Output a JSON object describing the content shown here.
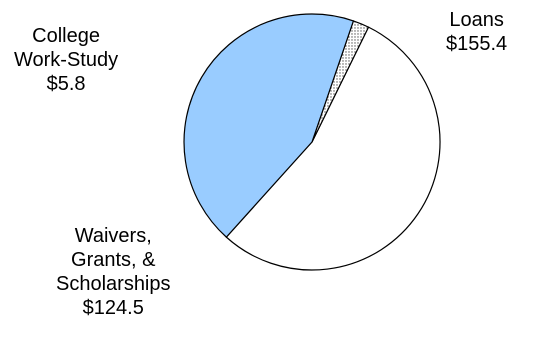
{
  "chart_data": {
    "type": "pie",
    "categories": [
      "Loans",
      "College Work-Study",
      "Waivers, Grants, & Scholarships"
    ],
    "values": [
      155.4,
      5.8,
      124.5
    ],
    "labels": [
      {
        "lines": [
          "Loans"
        ],
        "value_label": "$155.4"
      },
      {
        "lines": [
          "College",
          "Work-Study"
        ],
        "value_label": "$5.8"
      },
      {
        "lines": [
          "Waivers,",
          "Grants, &",
          "Scholarships"
        ],
        "value_label": "$124.5"
      }
    ],
    "colors": [
      "#ffffff",
      "#d9d9d9",
      "#99ccff"
    ],
    "patterns": [
      "none",
      "dots",
      "none"
    ],
    "outline_color": "#000000",
    "legend": "none",
    "title": ""
  }
}
